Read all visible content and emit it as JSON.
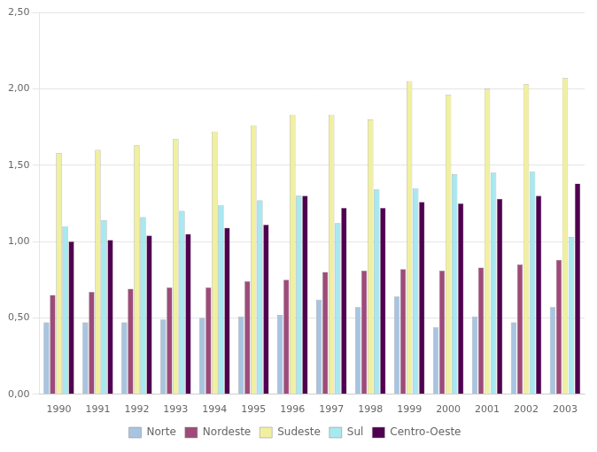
{
  "chart_data": {
    "type": "bar",
    "categories": [
      "1990",
      "1991",
      "1992",
      "1993",
      "1994",
      "1995",
      "1996",
      "1997",
      "1998",
      "1999",
      "2000",
      "2001",
      "2002",
      "2003"
    ],
    "series": [
      {
        "name": "Norte",
        "color": "#a8c4e0",
        "values": [
          0.47,
          0.47,
          0.47,
          0.49,
          0.5,
          0.51,
          0.52,
          0.62,
          0.57,
          0.64,
          0.44,
          0.51,
          0.47,
          0.57
        ]
      },
      {
        "name": "Nordeste",
        "color": "#9e4b7a",
        "values": [
          0.65,
          0.67,
          0.69,
          0.7,
          0.7,
          0.74,
          0.75,
          0.8,
          0.81,
          0.82,
          0.81,
          0.83,
          0.85,
          0.88
        ]
      },
      {
        "name": "Sudeste",
        "color": "#f0f0a0",
        "values": [
          1.58,
          1.6,
          1.63,
          1.67,
          1.72,
          1.76,
          1.83,
          1.83,
          1.8,
          2.05,
          1.96,
          2.0,
          2.03,
          2.07
        ]
      },
      {
        "name": "Sul",
        "color": "#a8e8f0",
        "values": [
          1.1,
          1.14,
          1.16,
          1.2,
          1.24,
          1.27,
          1.3,
          1.12,
          1.34,
          1.35,
          1.44,
          1.45,
          1.46,
          1.03
        ]
      },
      {
        "name": "Centro-Oeste",
        "color": "#500050",
        "values": [
          1.0,
          1.01,
          1.04,
          1.05,
          1.09,
          1.11,
          1.3,
          1.22,
          1.22,
          1.26,
          1.25,
          1.28,
          1.3,
          1.38
        ]
      }
    ],
    "ylim": [
      0,
      2.5
    ],
    "yticks": [
      {
        "value": 0,
        "label": "0,00"
      },
      {
        "value": 0.5,
        "label": "0,50"
      },
      {
        "value": 1,
        "label": "1,00"
      },
      {
        "value": 1.5,
        "label": "1,50"
      },
      {
        "value": 2,
        "label": "2,00"
      },
      {
        "value": 2.5,
        "label": "2,50"
      }
    ],
    "grid": "y",
    "legend": "bottom"
  }
}
